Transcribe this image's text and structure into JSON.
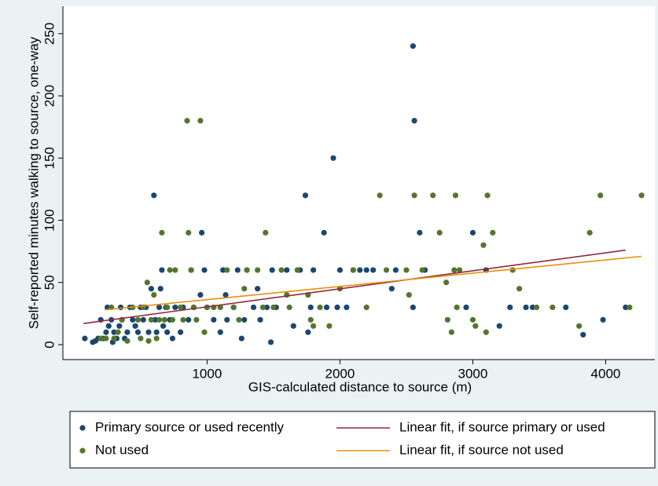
{
  "chart_data": {
    "type": "scatter",
    "xlabel": "GIS-calculated distance to source (m)",
    "ylabel": "Self-reported minutes walking to source, one-way",
    "xlim": [
      -85,
      4370
    ],
    "ylim": [
      -12,
      272
    ],
    "xticks": [
      1000,
      2000,
      3000,
      4000
    ],
    "yticks": [
      0,
      50,
      100,
      150,
      200,
      250
    ],
    "grid": false,
    "legend": "bottom",
    "series": [
      {
        "name": "Primary source or used recently",
        "type": "scatter",
        "color": "#1a476f",
        "x": [
          80,
          140,
          160,
          180,
          200,
          220,
          240,
          250,
          260,
          280,
          290,
          300,
          320,
          340,
          350,
          360,
          380,
          400,
          420,
          440,
          460,
          480,
          500,
          520,
          540,
          560,
          580,
          600,
          610,
          620,
          640,
          650,
          660,
          670,
          690,
          700,
          720,
          740,
          760,
          800,
          820,
          860,
          880,
          900,
          950,
          960,
          980,
          1000,
          1050,
          1100,
          1120,
          1140,
          1150,
          1200,
          1230,
          1260,
          1280,
          1300,
          1350,
          1380,
          1400,
          1450,
          1480,
          1490,
          1520,
          1600,
          1650,
          1700,
          1740,
          1760,
          1780,
          1800,
          1880,
          1900,
          1950,
          1980,
          2000,
          2050,
          2100,
          2150,
          2200,
          2250,
          2390,
          2420,
          2550,
          2550,
          2560,
          2600,
          2640,
          2950,
          3000,
          3100,
          3200,
          3280,
          3400,
          3450,
          3700,
          3830,
          3980,
          4150
        ],
        "values": [
          5,
          2,
          3,
          5,
          20,
          5,
          10,
          30,
          15,
          20,
          2,
          10,
          5,
          15,
          30,
          20,
          5,
          10,
          30,
          20,
          15,
          10,
          30,
          20,
          30,
          10,
          45,
          120,
          20,
          10,
          30,
          45,
          60,
          15,
          30,
          10,
          20,
          5,
          30,
          10,
          30,
          20,
          60,
          30,
          40,
          90,
          60,
          30,
          20,
          10,
          60,
          40,
          20,
          30,
          60,
          5,
          20,
          60,
          30,
          45,
          20,
          30,
          2,
          60,
          30,
          60,
          15,
          60,
          120,
          10,
          30,
          60,
          90,
          30,
          150,
          30,
          60,
          30,
          60,
          60,
          60,
          60,
          45,
          60,
          30,
          240,
          180,
          90,
          60,
          30,
          90,
          60,
          15,
          30,
          30,
          30,
          30,
          8,
          20,
          30
        ]
      },
      {
        "name": "Not used",
        "type": "scatter",
        "color": "#55752f",
        "x": [
          200,
          240,
          280,
          300,
          330,
          360,
          400,
          440,
          480,
          500,
          520,
          550,
          560,
          580,
          600,
          620,
          640,
          660,
          680,
          700,
          720,
          740,
          760,
          800,
          820,
          850,
          860,
          880,
          900,
          920,
          950,
          980,
          1000,
          1050,
          1100,
          1150,
          1200,
          1240,
          1280,
          1300,
          1380,
          1420,
          1440,
          1500,
          1560,
          1600,
          1620,
          1680,
          1760,
          1780,
          1800,
          1850,
          1920,
          2000,
          2100,
          2200,
          2300,
          2350,
          2500,
          2520,
          2560,
          2620,
          2700,
          2750,
          2800,
          2810,
          2840,
          2860,
          2870,
          2880,
          2900,
          3000,
          3020,
          3080,
          3100,
          3110,
          3150,
          3300,
          3350,
          3480,
          3600,
          3800,
          3880,
          3960,
          4180,
          4270
        ],
        "values": [
          5,
          5,
          30,
          5,
          10,
          20,
          3,
          30,
          20,
          5,
          30,
          50,
          3,
          20,
          40,
          5,
          20,
          90,
          20,
          30,
          60,
          20,
          60,
          30,
          20,
          180,
          90,
          60,
          30,
          20,
          180,
          10,
          30,
          30,
          30,
          60,
          30,
          20,
          45,
          60,
          60,
          30,
          90,
          30,
          60,
          40,
          30,
          60,
          40,
          20,
          15,
          30,
          15,
          45,
          60,
          30,
          120,
          60,
          60,
          40,
          120,
          60,
          120,
          90,
          50,
          20,
          10,
          60,
          120,
          30,
          60,
          20,
          15,
          80,
          10,
          120,
          90,
          60,
          45,
          30,
          30,
          15,
          90,
          120,
          30,
          120
        ]
      },
      {
        "name": "Linear fit, if source primary or used",
        "type": "line",
        "color": "#8f2a3b",
        "x": [
          70,
          4150
        ],
        "values": [
          17,
          76
        ]
      },
      {
        "name": "Linear fit, if source not used",
        "type": "line",
        "color": "#e8900c",
        "x": [
          230,
          4270
        ],
        "values": [
          28,
          71
        ]
      }
    ]
  }
}
